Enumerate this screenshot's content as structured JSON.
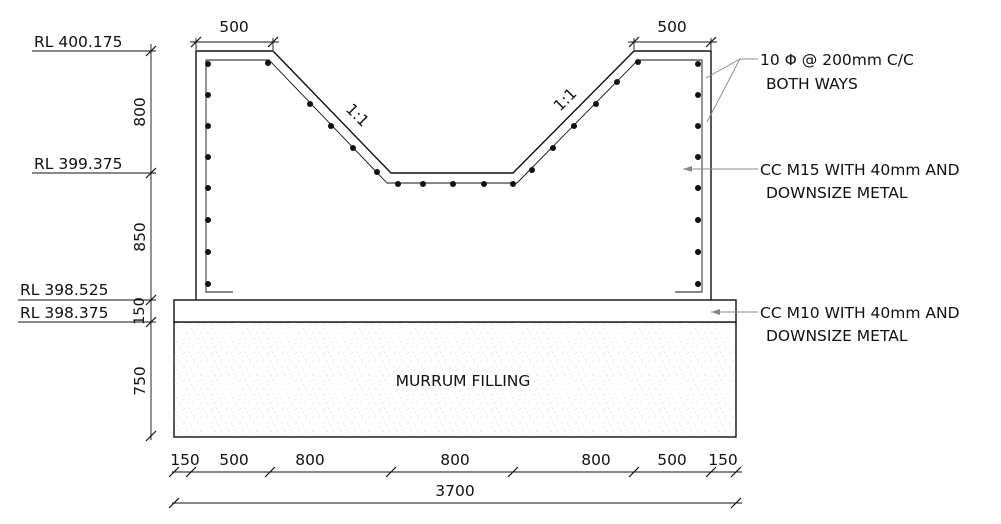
{
  "levels": {
    "rl1": "RL 400.175",
    "rl2": "RL 399.375",
    "rl3": "RL 398.525",
    "rl4": "RL 398.375"
  },
  "vertical_dims": {
    "d800": "800",
    "d850": "850",
    "d150": "150",
    "d750": "750"
  },
  "top_dims": {
    "left": "500",
    "right": "500"
  },
  "slopes": {
    "left": "1:1",
    "right": "1:1"
  },
  "bottom_dims": {
    "segments": [
      "150",
      "500",
      "800",
      "800",
      "800",
      "500",
      "150"
    ],
    "total": "3700"
  },
  "labels": {
    "rebar_line1": "10 Φ @ 200mm C/C",
    "rebar_line2": "BOTH WAYS",
    "cc15_line1": "CC M15 WITH 40mm AND",
    "cc15_line2": "DOWNSIZE METAL",
    "cc10_line1": "CC M10 WITH 40mm AND",
    "cc10_line2": "DOWNSIZE METAL",
    "fill": "MURRUM FILLING"
  }
}
